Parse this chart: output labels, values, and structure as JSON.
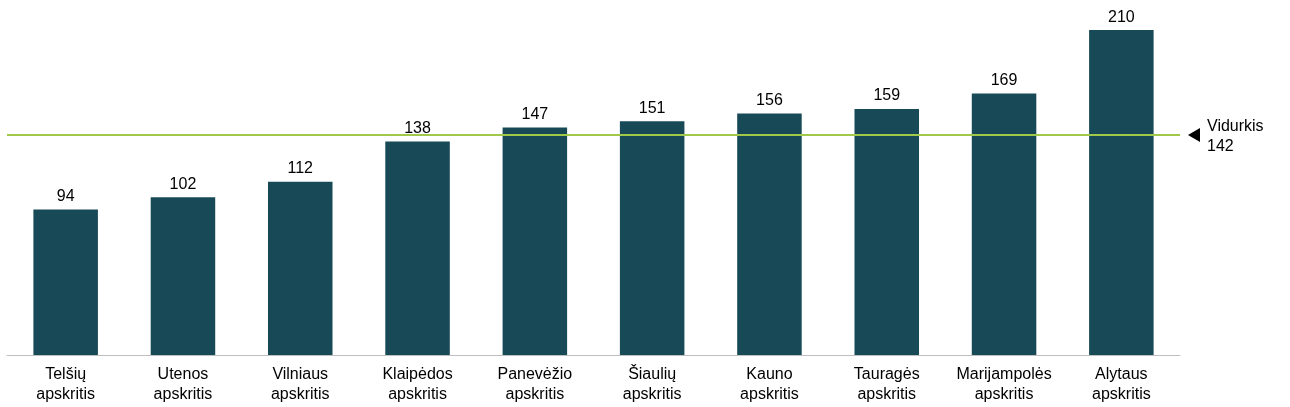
{
  "chart_data": {
    "type": "bar",
    "categories": [
      "Telšių apskritis",
      "Utenos apskritis",
      "Vilniaus apskritis",
      "Klaipėdos apskritis",
      "Panevėžio apskritis",
      "Šiaulių apskritis",
      "Kauno apskritis",
      "Tauragės apskritis",
      "Marijampolės apskritis",
      "Alytaus apskritis"
    ],
    "values": [
      94,
      102,
      112,
      138,
      147,
      151,
      156,
      159,
      169,
      210
    ],
    "color": "#174a56",
    "data_labels": true,
    "grid": false,
    "ref_lines": [
      {
        "axis": "y",
        "value": 142,
        "label": "Vidurkis 142",
        "color": "#a2c84a"
      }
    ]
  }
}
